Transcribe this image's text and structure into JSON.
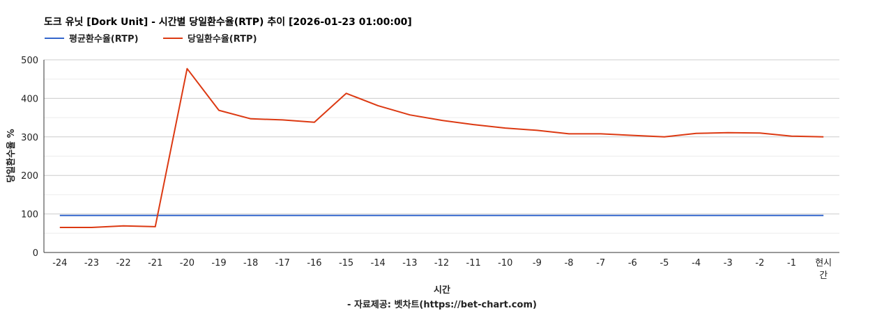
{
  "chart_data": {
    "type": "line",
    "title": "도크 유닛 [Dork Unit] - 시간별 당일환수율(RTP) 추이 [2026-01-23 01:00:00]",
    "xlabel": "시간",
    "ylabel": "당일환수율 %",
    "credit": "- 자료제공: 벳차트(https://bet-chart.com)",
    "categories": [
      "-24",
      "-23",
      "-22",
      "-21",
      "-20",
      "-19",
      "-18",
      "-17",
      "-16",
      "-15",
      "-14",
      "-13",
      "-12",
      "-11",
      "-10",
      "-9",
      "-8",
      "-7",
      "-6",
      "-5",
      "-4",
      "-3",
      "-2",
      "-1",
      "현시간"
    ],
    "yticks": [
      "0",
      "100",
      "200",
      "300",
      "400",
      "500"
    ],
    "ylim": [
      0,
      500
    ],
    "grid": true,
    "legend_position": "top-left",
    "series": [
      {
        "name": "평균환수율(RTP)",
        "color": "#3366cc",
        "values": [
          96,
          96,
          96,
          96,
          96,
          96,
          96,
          96,
          96,
          96,
          96,
          96,
          96,
          96,
          96,
          96,
          96,
          96,
          96,
          96,
          96,
          96,
          96,
          96,
          96
        ]
      },
      {
        "name": "당일환수율(RTP)",
        "color": "#dc3912",
        "values": [
          65,
          65,
          69,
          67,
          477,
          369,
          347,
          344,
          338,
          413,
          381,
          357,
          343,
          332,
          323,
          317,
          308,
          308,
          304,
          300,
          309,
          311,
          310,
          302,
          300
        ]
      }
    ]
  }
}
